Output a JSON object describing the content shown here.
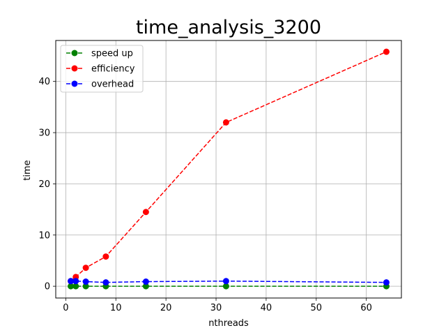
{
  "chart_data": {
    "type": "line",
    "title": "time_analysis_3200",
    "xlabel": "nthreads",
    "ylabel": "time",
    "xlim": [
      -2,
      67
    ],
    "ylim": [
      -2.3,
      48
    ],
    "xticks": [
      0,
      10,
      20,
      30,
      40,
      50,
      60
    ],
    "yticks": [
      0,
      10,
      20,
      30,
      40
    ],
    "grid": true,
    "legend_position": "upper-left",
    "x": [
      1,
      2,
      4,
      8,
      16,
      32,
      64
    ],
    "series": [
      {
        "name": "speed up",
        "color": "#008000",
        "values": [
          0.0,
          0.0,
          0.0,
          0.0,
          0.0,
          0.0,
          0.0
        ]
      },
      {
        "name": "efficiency",
        "color": "#ff0000",
        "values": [
          1.0,
          1.8,
          3.6,
          5.8,
          14.5,
          32.0,
          45.8
        ]
      },
      {
        "name": "overhead",
        "color": "#0000ff",
        "values": [
          1.0,
          1.0,
          0.9,
          0.75,
          0.9,
          1.0,
          0.75
        ]
      }
    ]
  }
}
